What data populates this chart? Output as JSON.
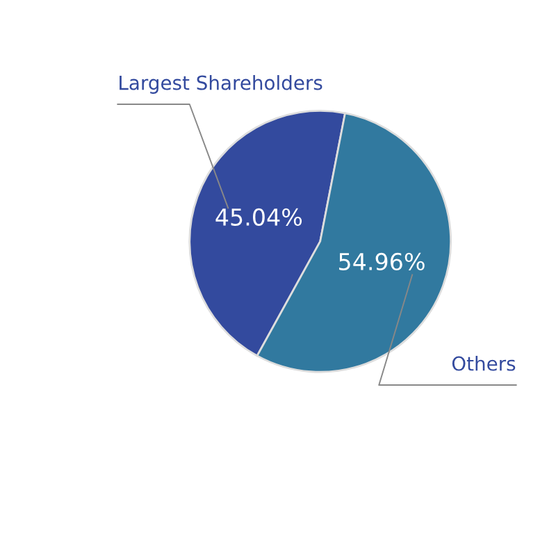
{
  "chart_data": {
    "type": "pie",
    "categories": [
      "Largest Shareholders",
      "Others"
    ],
    "values": [
      45.04,
      54.96
    ],
    "value_labels": [
      "45.04%",
      "54.96%"
    ],
    "colors": [
      "#334a9e",
      "#31799f"
    ],
    "legend": false
  }
}
